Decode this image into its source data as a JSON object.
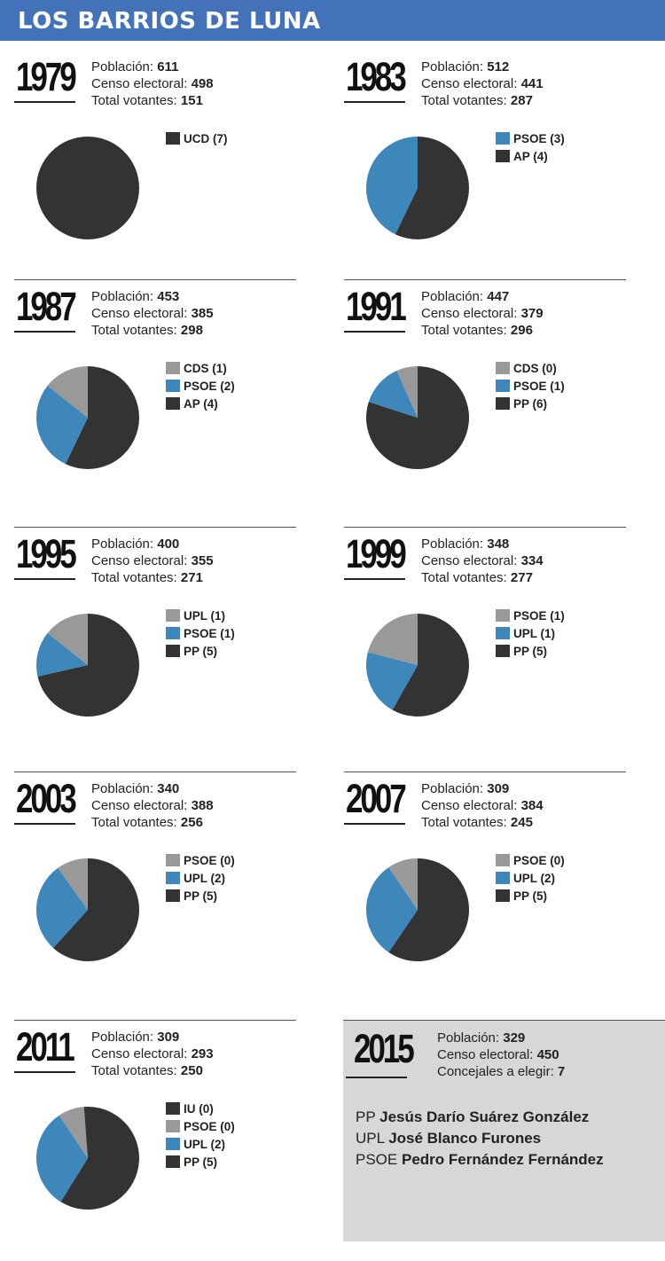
{
  "title": "LOS BARRIOS DE LUNA",
  "labels": {
    "poblacion": "Población:",
    "censo": "Censo electoral:",
    "votantes": "Total votantes:",
    "concejales": "Concejales a elegir:"
  },
  "colors": {
    "PP": "#333333",
    "AP": "#333333",
    "UCD": "#333333",
    "PSOE": "#3d87bb",
    "UPL": "#3d87bb",
    "CDS": "#999999",
    "IU": "#333333"
  },
  "chart_data": [
    {
      "type": "pie",
      "year": "1979",
      "poblacion": "611",
      "censo": "498",
      "votantes": "151",
      "legend": [
        {
          "label": "UCD (7)",
          "color": "#333333"
        }
      ],
      "slices": [
        {
          "label": "UCD",
          "value": 7,
          "color": "#333333"
        }
      ]
    },
    {
      "type": "pie",
      "year": "1983",
      "poblacion": "512",
      "censo": "441",
      "votantes": "287",
      "legend": [
        {
          "label": "PSOE (3)",
          "color": "#3d87bb"
        },
        {
          "label": "AP (4)",
          "color": "#333333"
        }
      ],
      "slices": [
        {
          "label": "AP",
          "value": 4,
          "color": "#333333"
        },
        {
          "label": "PSOE",
          "value": 3,
          "color": "#3d87bb"
        }
      ]
    },
    {
      "type": "pie",
      "year": "1987",
      "poblacion": "453",
      "censo": "385",
      "votantes": "298",
      "legend": [
        {
          "label": "CDS (1)",
          "color": "#999999"
        },
        {
          "label": "PSOE (2)",
          "color": "#3d87bb"
        },
        {
          "label": "AP (4)",
          "color": "#333333"
        }
      ],
      "slices": [
        {
          "label": "AP",
          "value": 4,
          "color": "#333333"
        },
        {
          "label": "PSOE",
          "value": 2,
          "color": "#3d87bb"
        },
        {
          "label": "CDS",
          "value": 1,
          "color": "#999999"
        }
      ]
    },
    {
      "type": "pie",
      "year": "1991",
      "poblacion": "447",
      "censo": "379",
      "votantes": "296",
      "legend": [
        {
          "label": "CDS (0)",
          "color": "#999999"
        },
        {
          "label": "PSOE (1)",
          "color": "#3d87bb"
        },
        {
          "label": "PP (6)",
          "color": "#333333"
        }
      ],
      "slices": [
        {
          "label": "PP",
          "value": 6,
          "color": "#333333"
        },
        {
          "label": "PSOE",
          "value": 1,
          "color": "#3d87bb"
        },
        {
          "label": "CDS",
          "value": 0.5,
          "color": "#999999"
        }
      ]
    },
    {
      "type": "pie",
      "year": "1995",
      "poblacion": "400",
      "censo": "355",
      "votantes": "271",
      "legend": [
        {
          "label": "UPL (1)",
          "color": "#999999"
        },
        {
          "label": "PSOE (1)",
          "color": "#3d87bb"
        },
        {
          "label": "PP (5)",
          "color": "#333333"
        }
      ],
      "slices": [
        {
          "label": "PP",
          "value": 5,
          "color": "#333333"
        },
        {
          "label": "PSOE",
          "value": 1,
          "color": "#3d87bb"
        },
        {
          "label": "UPL",
          "value": 1,
          "color": "#999999"
        }
      ]
    },
    {
      "type": "pie",
      "year": "1999",
      "poblacion": "348",
      "censo": "334",
      "votantes": "277",
      "legend": [
        {
          "label": "PSOE (1)",
          "color": "#999999"
        },
        {
          "label": "UPL (1)",
          "color": "#3d87bb"
        },
        {
          "label": "PP (5)",
          "color": "#333333"
        }
      ],
      "slices": [
        {
          "label": "PP",
          "value": 5,
          "color": "#333333"
        },
        {
          "label": "UPL",
          "value": 1.8,
          "color": "#3d87bb"
        },
        {
          "label": "PSOE",
          "value": 1.8,
          "color": "#999999"
        }
      ]
    },
    {
      "type": "pie",
      "year": "2003",
      "poblacion": "340",
      "censo": "388",
      "votantes": "256",
      "legend": [
        {
          "label": "PSOE (0)",
          "color": "#999999"
        },
        {
          "label": "UPL (2)",
          "color": "#3d87bb"
        },
        {
          "label": "PP (5)",
          "color": "#333333"
        }
      ],
      "slices": [
        {
          "label": "PP",
          "value": 5,
          "color": "#333333"
        },
        {
          "label": "UPL",
          "value": 2.3,
          "color": "#3d87bb"
        },
        {
          "label": "PSOE",
          "value": 0.8,
          "color": "#999999"
        }
      ]
    },
    {
      "type": "pie",
      "year": "2007",
      "poblacion": "309",
      "censo": "384",
      "votantes": "245",
      "legend": [
        {
          "label": "PSOE (0)",
          "color": "#999999"
        },
        {
          "label": "UPL (2)",
          "color": "#3d87bb"
        },
        {
          "label": "PP (5)",
          "color": "#333333"
        }
      ],
      "slices": [
        {
          "label": "PP",
          "value": 5,
          "color": "#333333"
        },
        {
          "label": "UPL",
          "value": 2.6,
          "color": "#3d87bb"
        },
        {
          "label": "PSOE",
          "value": 0.8,
          "color": "#999999"
        }
      ]
    },
    {
      "type": "pie",
      "year": "2011",
      "poblacion": "309",
      "censo": "293",
      "votantes": "250",
      "legend": [
        {
          "label": "IU (0)",
          "color": "#333333"
        },
        {
          "label": "PSOE (0)",
          "color": "#999999"
        },
        {
          "label": "UPL (2)",
          "color": "#3d87bb"
        },
        {
          "label": "PP (5)",
          "color": "#333333"
        }
      ],
      "slices": [
        {
          "label": "PP",
          "value": 5,
          "color": "#333333"
        },
        {
          "label": "UPL",
          "value": 2.7,
          "color": "#3d87bb"
        },
        {
          "label": "PSOE",
          "value": 0.7,
          "color": "#999999"
        },
        {
          "label": "IU",
          "value": 0.1,
          "color": "#333333"
        }
      ]
    }
  ],
  "y2015": {
    "year": "2015",
    "poblacion": "329",
    "censo": "450",
    "concejales": "7",
    "candidates": [
      {
        "party": "PP",
        "name": "Jesús Darío Suárez González"
      },
      {
        "party": "UPL",
        "name": "José Blanco Furones"
      },
      {
        "party": "PSOE",
        "name": "Pedro Fernández Fernández"
      }
    ]
  }
}
